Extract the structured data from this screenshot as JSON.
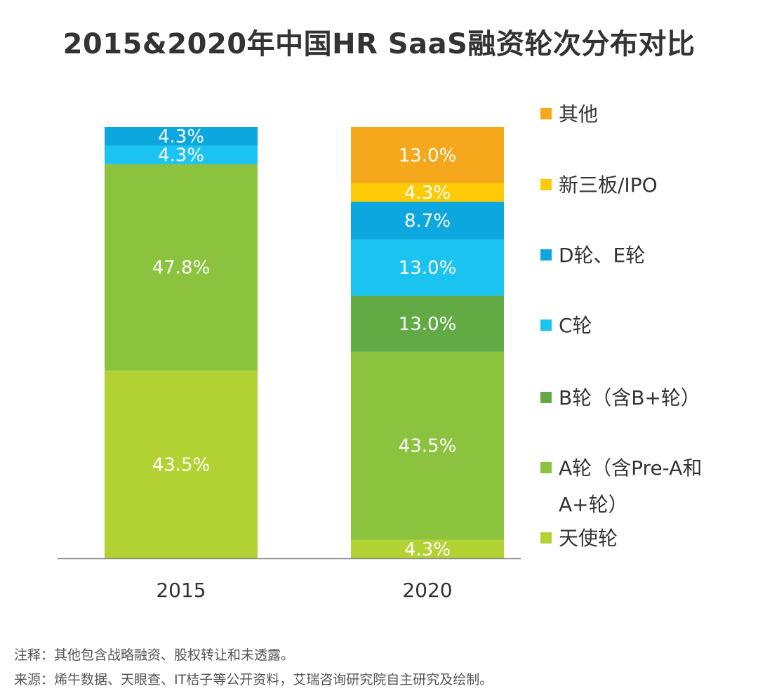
{
  "title": "2015&2020年中国HR SaaS融资轮次分布对比",
  "notes": {
    "annotation": "注释：其他包含战略融资、股权转让和未透露。",
    "source": "来源：烯牛数据、天眼查、IT桔子等公开资料，艾瑞咨询研究院自主研究及绘制。"
  },
  "colors": {
    "其他": "#F5A81C",
    "新三板/IPO": "#FCCB05",
    "D轮、E轮": "#0CA7DF",
    "C轮": "#1BC3F0",
    "B轮（含B+轮）": "#62AB44",
    "A轮（含Pre-A和A+轮）": "#8BC33F",
    "天使轮": "#B3D234"
  },
  "chart_data": {
    "type": "bar",
    "stacked": true,
    "categories": [
      "2015",
      "2020"
    ],
    "ylim": [
      0,
      100
    ],
    "legend_position": "right",
    "grid": false,
    "series": [
      {
        "name": "天使轮",
        "values": [
          43.5,
          4.3
        ],
        "labels": [
          "43.5%",
          "4.3%"
        ]
      },
      {
        "name": "A轮（含Pre-A和A+轮）",
        "values": [
          47.8,
          43.5
        ],
        "labels": [
          "47.8%",
          "43.5%"
        ]
      },
      {
        "name": "B轮（含B+轮）",
        "values": [
          0,
          13.0
        ],
        "labels": [
          "",
          "13.0%"
        ]
      },
      {
        "name": "C轮",
        "values": [
          4.3,
          13.0
        ],
        "labels": [
          "4.3%",
          "13.0%"
        ]
      },
      {
        "name": "D轮、E轮",
        "values": [
          4.3,
          8.7
        ],
        "labels": [
          "4.3%",
          "8.7%"
        ]
      },
      {
        "name": "新三板/IPO",
        "values": [
          0,
          4.3
        ],
        "labels": [
          "",
          "4.3%"
        ]
      },
      {
        "name": "其他",
        "values": [
          0,
          13.0
        ],
        "labels": [
          "",
          "13.0%"
        ]
      }
    ],
    "legend_order": [
      "其他",
      "新三板/IPO",
      "D轮、E轮",
      "C轮",
      "B轮（含B+轮）",
      "A轮（含Pre-A和A+轮）",
      "天使轮"
    ]
  }
}
